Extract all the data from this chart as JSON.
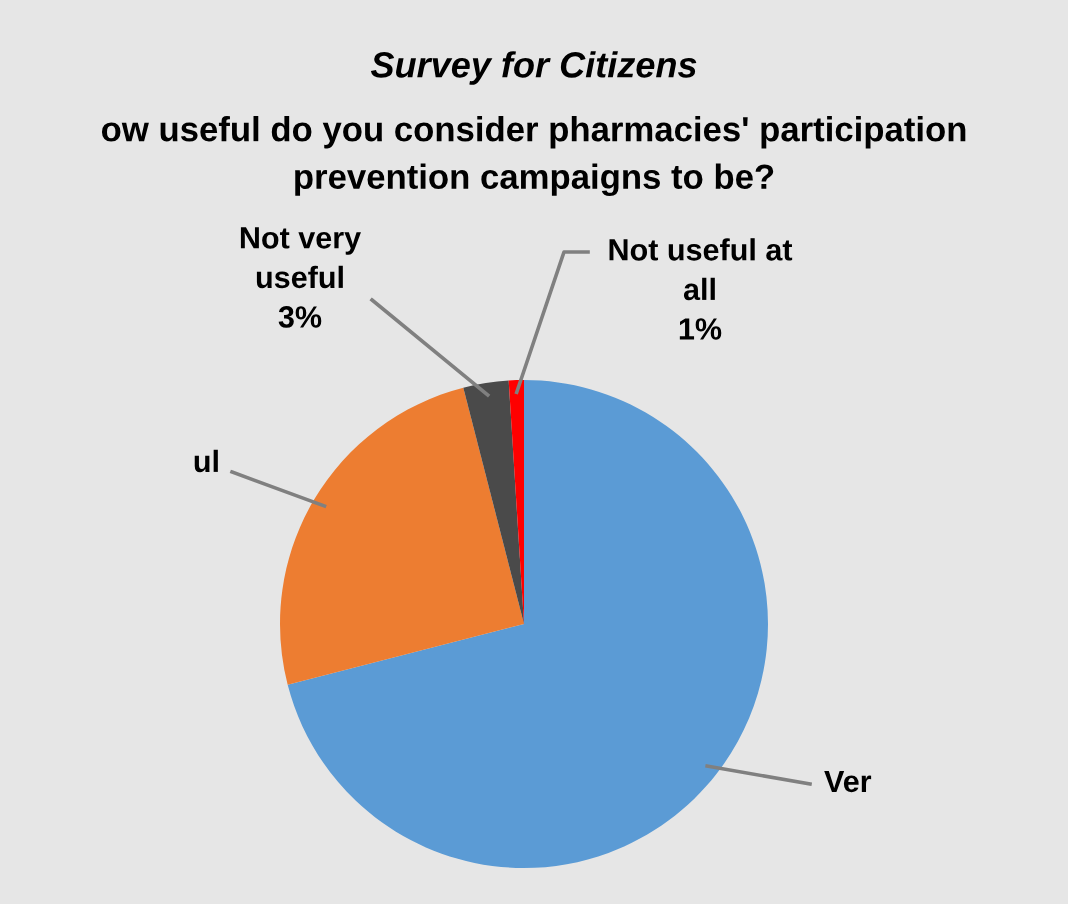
{
  "chart_data": {
    "type": "pie",
    "title": "Survey for Citizens",
    "subtitle": "ow useful do you consider pharmacies' participation prevention campaigns to be?",
    "categories": [
      "Ver",
      "ul",
      "Not very useful",
      "Not useful at all"
    ],
    "values": [
      71,
      25,
      3,
      1
    ],
    "colors": [
      "#5b9bd5",
      "#ed7d31",
      "#4a4a4a",
      "#ff0000"
    ],
    "value_labels": [
      null,
      null,
      "3%",
      "1%"
    ]
  }
}
